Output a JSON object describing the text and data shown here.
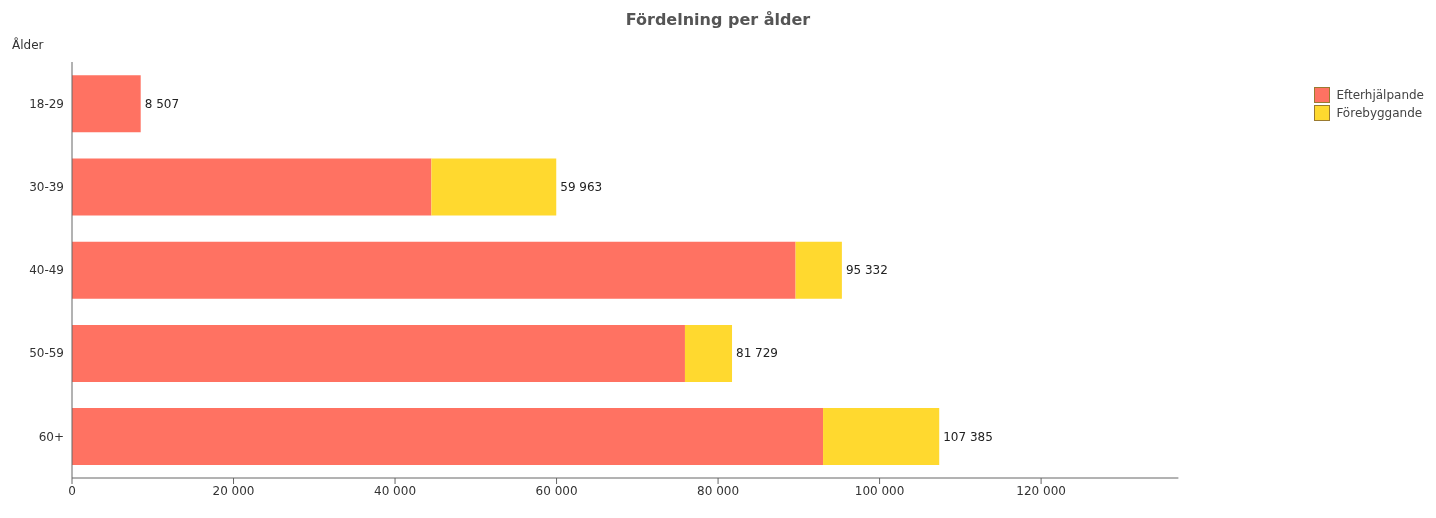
{
  "chart_data": {
    "type": "bar",
    "orientation": "horizontal",
    "stacked": true,
    "title": "Fördelning per ålder",
    "ylabel": "Ålder",
    "categories": [
      "18-29",
      "30-39",
      "40-49",
      "50-59",
      "60+"
    ],
    "series": [
      {
        "name": "Efterhjälpande",
        "color": "#ff7262",
        "values": [
          8507,
          44500,
          89600,
          75900,
          93000
        ]
      },
      {
        "name": "Förebyggande",
        "color": "#ffd92f",
        "values": [
          0,
          15463,
          5732,
          5829,
          14385
        ]
      }
    ],
    "totals": [
      "8 507",
      "59 963",
      "95 332",
      "81 729",
      "107 385"
    ],
    "xlim": [
      0,
      137000
    ],
    "xticks": [
      {
        "value": 0,
        "label": "0"
      },
      {
        "value": 20000,
        "label": "20 000"
      },
      {
        "value": 40000,
        "label": "40 000"
      },
      {
        "value": 60000,
        "label": "60 000"
      },
      {
        "value": 80000,
        "label": "80 000"
      },
      {
        "value": 100000,
        "label": "100 000"
      },
      {
        "value": 120000,
        "label": "120 000"
      }
    ],
    "grid": false,
    "legend": "top right"
  }
}
